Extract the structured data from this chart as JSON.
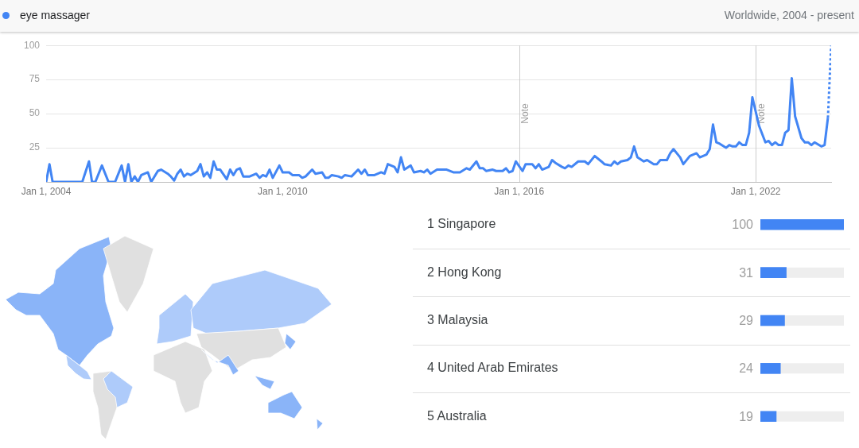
{
  "chart_data": [
    {
      "type": "line",
      "subtitle": "Worldwide, 2004 - present",
      "legend": "top left",
      "marker": "none",
      "grid": "y",
      "series": [
        {
          "name": "eye massager",
          "color": "#4285f4",
          "line_style": "solid",
          "x": [
            "2004-01",
            "2004-02",
            "2004-03",
            "2004-12",
            "2005-02",
            "2005-03",
            "2005-04",
            "2005-06",
            "2005-08",
            "2005-10",
            "2005-12",
            "2006-01",
            "2006-02",
            "2006-03",
            "2006-04",
            "2006-05",
            "2006-06",
            "2006-08",
            "2006-09",
            "2006-11",
            "2006-12",
            "2007-02",
            "2007-03",
            "2007-04",
            "2007-05",
            "2007-06",
            "2007-07",
            "2007-08",
            "2007-09",
            "2007-11",
            "2007-12",
            "2008-01",
            "2008-02",
            "2008-03",
            "2008-04",
            "2008-05",
            "2008-06",
            "2008-08",
            "2008-09",
            "2008-10",
            "2008-11",
            "2008-12",
            "2009-01",
            "2009-03",
            "2009-05",
            "2009-06",
            "2009-07",
            "2009-08",
            "2009-09",
            "2009-10",
            "2009-12",
            "2010-01",
            "2010-03",
            "2010-04",
            "2010-06",
            "2010-07",
            "2010-08",
            "2010-10",
            "2010-11",
            "2011-01",
            "2011-02",
            "2011-03",
            "2011-04",
            "2011-06",
            "2011-07",
            "2011-08",
            "2011-10",
            "2011-12",
            "2012-01",
            "2012-02",
            "2012-03",
            "2012-05",
            "2012-07",
            "2012-08",
            "2012-09",
            "2012-11",
            "2012-12",
            "2013-01",
            "2013-02",
            "2013-04",
            "2013-05",
            "2013-07",
            "2013-08",
            "2013-09",
            "2013-10",
            "2013-12",
            "2014-01",
            "2014-03",
            "2014-05",
            "2014-07",
            "2014-09",
            "2014-10",
            "2014-12",
            "2015-01",
            "2015-02",
            "2015-03",
            "2015-05",
            "2015-06",
            "2015-08",
            "2015-09",
            "2015-10",
            "2015-11",
            "2015-12",
            "2016-02",
            "2016-03",
            "2016-05",
            "2016-06",
            "2016-07",
            "2016-08",
            "2016-10",
            "2016-11",
            "2016-12",
            "2017-02",
            "2017-03",
            "2017-04",
            "2017-05",
            "2017-07",
            "2017-09",
            "2017-10",
            "2017-12",
            "2018-02",
            "2018-03",
            "2018-05",
            "2018-06",
            "2018-07",
            "2018-08",
            "2018-10",
            "2018-11",
            "2018-12",
            "2019-01",
            "2019-03",
            "2019-04",
            "2019-06",
            "2019-07",
            "2019-08",
            "2019-10",
            "2019-11",
            "2019-12",
            "2020-02",
            "2020-03",
            "2020-05",
            "2020-07",
            "2020-08",
            "2020-10",
            "2020-11",
            "2020-12",
            "2021-01",
            "2021-02",
            "2021-04",
            "2021-05",
            "2021-06",
            "2021-07",
            "2021-08",
            "2021-09",
            "2021-10",
            "2021-11",
            "2021-12",
            "2022-02",
            "2022-04",
            "2022-05",
            "2022-06",
            "2022-07",
            "2022-08",
            "2022-09",
            "2022-10",
            "2022-11",
            "2022-12",
            "2023-01",
            "2023-03",
            "2023-04",
            "2023-05",
            "2023-06",
            "2023-07",
            "2023-09",
            "2023-10",
            "2023-11"
          ],
          "values": [
            0,
            13,
            0,
            0,
            15,
            0,
            0,
            12,
            0,
            0,
            12,
            0,
            13,
            0,
            4,
            0,
            5,
            7,
            0,
            8,
            9,
            6,
            4,
            1,
            6,
            9,
            4,
            6,
            5,
            8,
            13,
            4,
            7,
            3,
            15,
            9,
            9,
            2,
            9,
            5,
            9,
            10,
            4,
            4,
            6,
            3,
            5,
            4,
            9,
            3,
            12,
            7,
            7,
            5,
            5,
            3,
            4,
            9,
            6,
            7,
            3,
            3,
            5,
            4,
            3,
            5,
            4,
            9,
            6,
            9,
            5,
            5,
            7,
            6,
            13,
            11,
            7,
            18,
            9,
            12,
            7,
            8,
            7,
            9,
            6,
            9,
            9,
            9,
            7,
            7,
            10,
            9,
            15,
            10,
            10,
            8,
            9,
            8,
            8,
            10,
            7,
            8,
            15,
            8,
            13,
            13,
            10,
            13,
            9,
            11,
            16,
            14,
            11,
            10,
            12,
            11,
            15,
            15,
            13,
            19,
            15,
            13,
            12,
            15,
            13,
            15,
            16,
            18,
            26,
            18,
            15,
            16,
            13,
            13,
            16,
            16,
            21,
            24,
            18,
            13,
            19,
            21,
            18,
            20,
            24,
            42,
            29,
            28,
            25,
            27,
            26,
            26,
            29,
            27,
            27,
            36,
            62,
            41,
            29,
            30,
            27,
            29,
            27,
            27,
            36,
            38,
            76,
            48,
            32,
            29,
            29,
            27,
            29,
            26,
            27,
            47
          ]
        },
        {
          "color": "#4285f4",
          "line_style": "dotted",
          "x": [
            "2023-11",
            "2023-12"
          ],
          "values": [
            47,
            100
          ]
        }
      ],
      "xlim": [
        "2004-01",
        "2023-12"
      ],
      "xticks": [
        {
          "value": "2004-01",
          "label": "Jan 1, 2004"
        },
        {
          "value": "2010-01",
          "label": "Jan 1, 2010"
        },
        {
          "value": "2016-01",
          "label": "Jan 1, 2016"
        },
        {
          "value": "2022-01",
          "label": "Jan 1, 2022"
        }
      ],
      "ylim": [
        0,
        100
      ],
      "yticks": [
        25,
        50,
        75,
        100
      ],
      "ref_lines": [
        {
          "axis": "x",
          "value": "2016-01",
          "label": "Note",
          "color": "#cccccc"
        },
        {
          "axis": "x",
          "value": "2022-01",
          "label": "Note",
          "color": "#cccccc"
        }
      ]
    },
    {
      "type": "bar",
      "orientation": "horizontal",
      "categories": [
        "1 Singapore",
        "2 Hong Kong",
        "3 Malaysia",
        "4 United Arab Emirates",
        "5 Australia"
      ],
      "values": [
        100,
        31,
        29,
        24,
        19
      ],
      "color": "#4285f4",
      "data_labels": true,
      "grid": "y",
      "tick_labels": "y"
    }
  ]
}
